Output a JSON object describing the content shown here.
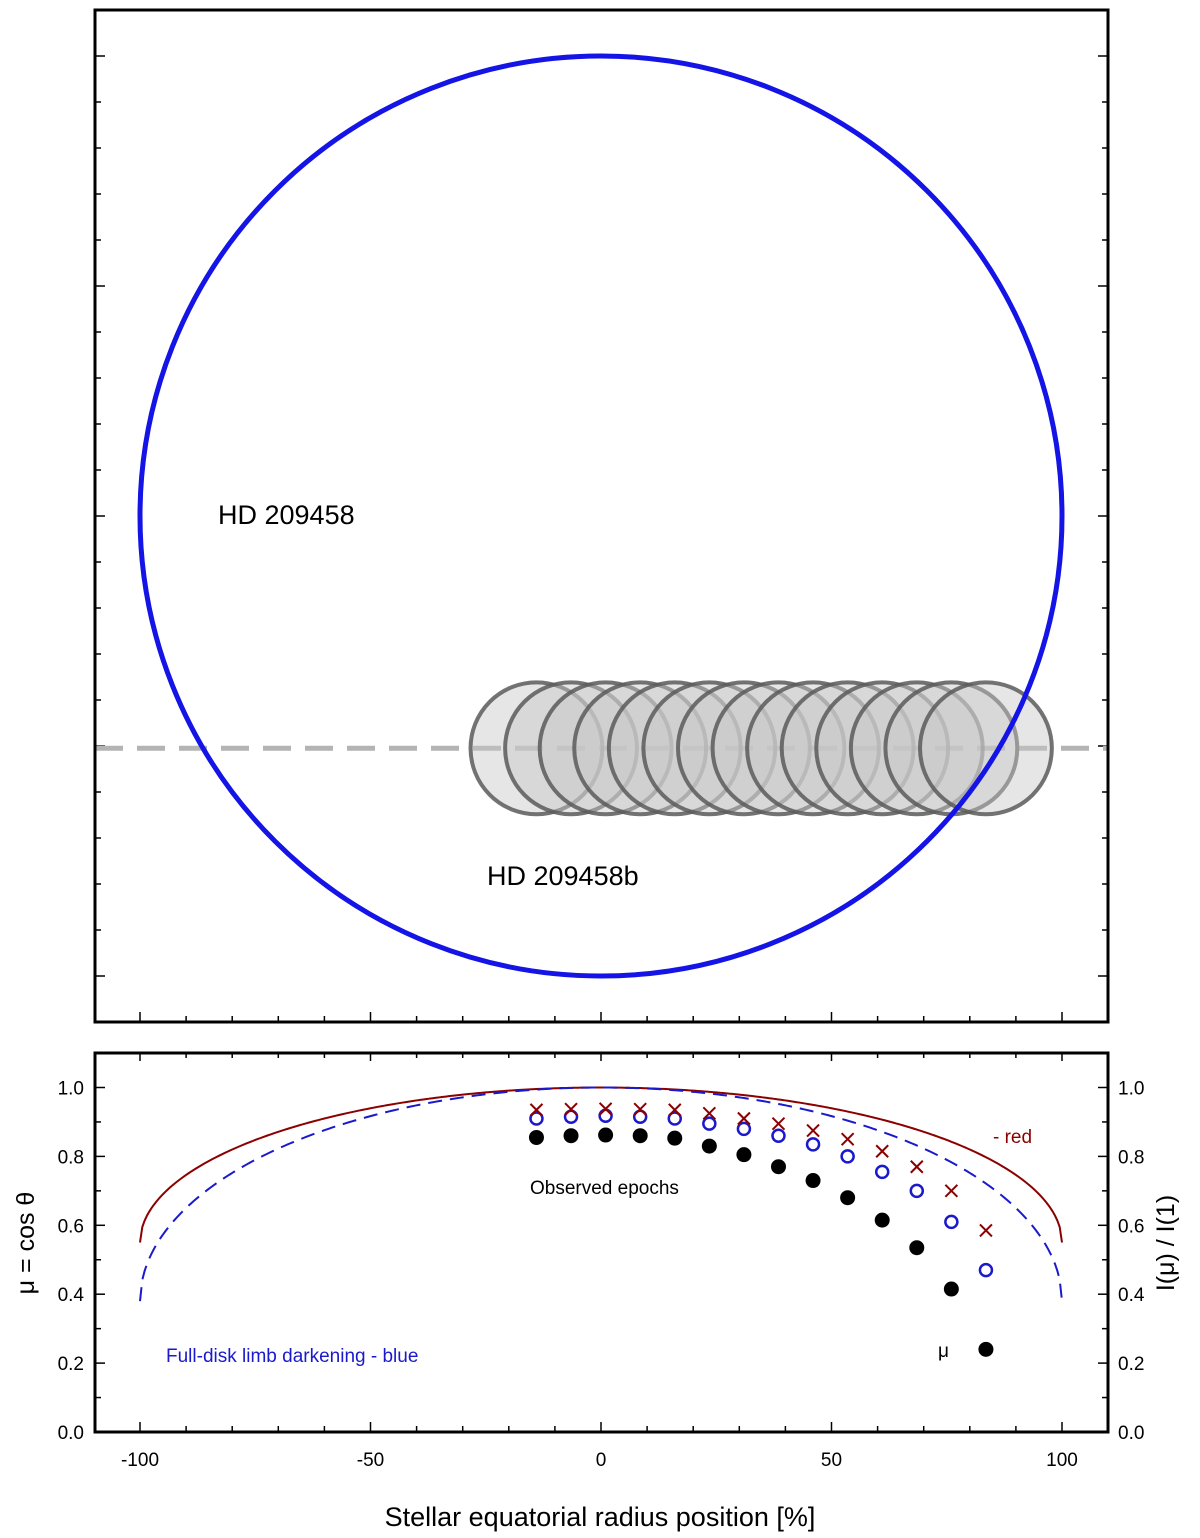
{
  "chart_data": [
    {
      "type": "diagram",
      "title": "",
      "star_label": "HD 209458",
      "planet_label": "HD 209458b",
      "colors": {
        "star": "#1414e6",
        "planet_fill": "#c8c8c8",
        "planet_stroke": "#5a5a5a",
        "transit_chord": "#b4b4b4"
      },
      "star_radius": 100,
      "planet_radius": 14.3,
      "transit_chord_y": -50.5,
      "planet_x_positions": [
        -14,
        -6.5,
        1,
        8.5,
        16,
        23.5,
        31,
        38.5,
        46,
        53.5,
        61,
        68.5,
        76,
        83.5
      ]
    },
    {
      "type": "scatter",
      "xlabel": "Stellar equatorial radius position [%]",
      "ylabel": "μ = cos θ",
      "ylabel_right": "I(μ) / I(1)",
      "xlim": [
        -110,
        110
      ],
      "ylim": [
        0,
        1.1
      ],
      "x_ticks": [
        -100,
        -50,
        0,
        50,
        100
      ],
      "y_ticks": [
        "0.0",
        "0.2",
        "0.4",
        "0.6",
        "0.8",
        "1.0"
      ],
      "annotations": {
        "red": "- red",
        "observed": "Observed epochs",
        "blue": "Full-disk limb darkening - blue",
        "mu": "μ"
      },
      "colors": {
        "red": "#8b0000",
        "blue": "#1a1acc",
        "mu": "#000000"
      },
      "curves": [
        {
          "key": "red",
          "style": "solid",
          "u": 0.45
        },
        {
          "key": "blue",
          "style": "dashed",
          "u": 0.62
        }
      ],
      "series": [
        {
          "key": "mu",
          "marker": "filled-circle",
          "x": [
            -14,
            -6.5,
            1,
            8.5,
            16,
            23.5,
            31,
            38.5,
            46,
            53.5,
            61,
            68.5,
            76,
            83.5
          ],
          "y": [
            0.855,
            0.86,
            0.862,
            0.86,
            0.853,
            0.83,
            0.805,
            0.77,
            0.73,
            0.68,
            0.615,
            0.535,
            0.415,
            0.24
          ]
        },
        {
          "key": "blue",
          "marker": "open-circle",
          "x": [
            -14,
            -6.5,
            1,
            8.5,
            16,
            23.5,
            31,
            38.5,
            46,
            53.5,
            61,
            68.5,
            76,
            83.5
          ],
          "y": [
            0.91,
            0.915,
            0.918,
            0.915,
            0.91,
            0.895,
            0.88,
            0.86,
            0.835,
            0.8,
            0.755,
            0.7,
            0.61,
            0.47
          ]
        },
        {
          "key": "red",
          "marker": "cross",
          "x": [
            -14,
            -6.5,
            1,
            8.5,
            16,
            23.5,
            31,
            38.5,
            46,
            53.5,
            61,
            68.5,
            76,
            83.5
          ],
          "y": [
            0.935,
            0.937,
            0.938,
            0.937,
            0.935,
            0.925,
            0.91,
            0.895,
            0.875,
            0.85,
            0.815,
            0.77,
            0.7,
            0.585
          ]
        }
      ]
    }
  ]
}
